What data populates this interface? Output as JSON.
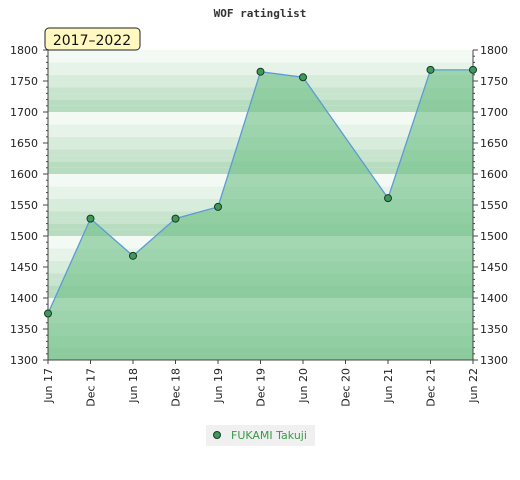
{
  "chart_data": {
    "type": "area",
    "title": "WOF ratinglist",
    "period_badge": "2017–2022",
    "xlabel": "",
    "ylabel": "",
    "x_ticks": [
      "Jun 17",
      "Dec 17",
      "Jun 18",
      "Dec 18",
      "Jun 19",
      "Dec 19",
      "Jun 20",
      "Dec 20",
      "Jun 21",
      "Dec 21",
      "Jun 22"
    ],
    "y_ticks": [
      1300,
      1350,
      1400,
      1450,
      1500,
      1550,
      1600,
      1650,
      1700,
      1750,
      1800
    ],
    "ylim": [
      1300,
      1800
    ],
    "series": [
      {
        "name": "FUKAMI Takuji",
        "points": [
          {
            "x": "Jun 17",
            "y": 1375
          },
          {
            "x": "Dec 17",
            "y": 1528
          },
          {
            "x": "Jun 18",
            "y": 1468
          },
          {
            "x": "Dec 18",
            "y": 1528
          },
          {
            "x": "Jun 19",
            "y": 1547
          },
          {
            "x": "Dec 19",
            "y": 1765
          },
          {
            "x": "Jun 20",
            "y": 1756
          },
          {
            "x": "Jun 21",
            "y": 1561
          },
          {
            "x": "Dec 21",
            "y": 1768
          },
          {
            "x": "Jun 22",
            "y": 1768
          }
        ]
      }
    ],
    "grid": true,
    "legend_position": "bottom-center",
    "colors": {
      "area_fill": "#6cbf86",
      "line": "#5b9bd5",
      "marker": "#3e9a5c",
      "badge_bg": "#fff8c0",
      "legend_text": "#3a9a4a"
    }
  }
}
